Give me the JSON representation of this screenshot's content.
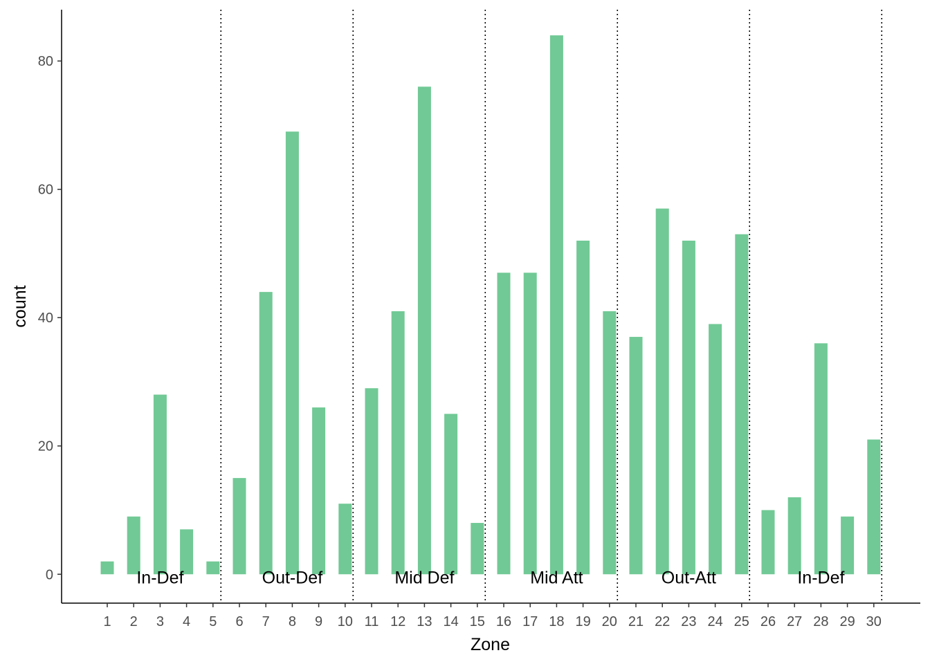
{
  "chart_data": {
    "type": "bar",
    "title": "",
    "xlabel": "Zone",
    "ylabel": "count",
    "categories": [
      "1",
      "2",
      "3",
      "4",
      "5",
      "6",
      "7",
      "8",
      "9",
      "10",
      "11",
      "12",
      "13",
      "14",
      "15",
      "16",
      "17",
      "18",
      "19",
      "20",
      "21",
      "22",
      "23",
      "24",
      "25",
      "26",
      "27",
      "28",
      "29",
      "30"
    ],
    "values": [
      2,
      9,
      28,
      7,
      2,
      15,
      44,
      69,
      26,
      11,
      29,
      41,
      76,
      25,
      8,
      47,
      47,
      84,
      52,
      41,
      37,
      57,
      52,
      39,
      53,
      10,
      12,
      36,
      9,
      21
    ],
    "ylim": [
      -4.5,
      88
    ],
    "yticks": [
      0,
      20,
      40,
      60,
      80
    ],
    "grid": false,
    "bar_color": "#71c995",
    "divider_positions": [
      5.3,
      10.3,
      15.3,
      20.3,
      25.3,
      30.3
    ],
    "zone_labels": [
      {
        "text": "In-Def",
        "x": 3
      },
      {
        "text": "Out-Def",
        "x": 8
      },
      {
        "text": "Mid Def",
        "x": 13
      },
      {
        "text": "Mid Att",
        "x": 18
      },
      {
        "text": "Out-Att",
        "x": 23
      },
      {
        "text": "In-Def",
        "x": 28
      }
    ],
    "zone_label_y": 0
  }
}
